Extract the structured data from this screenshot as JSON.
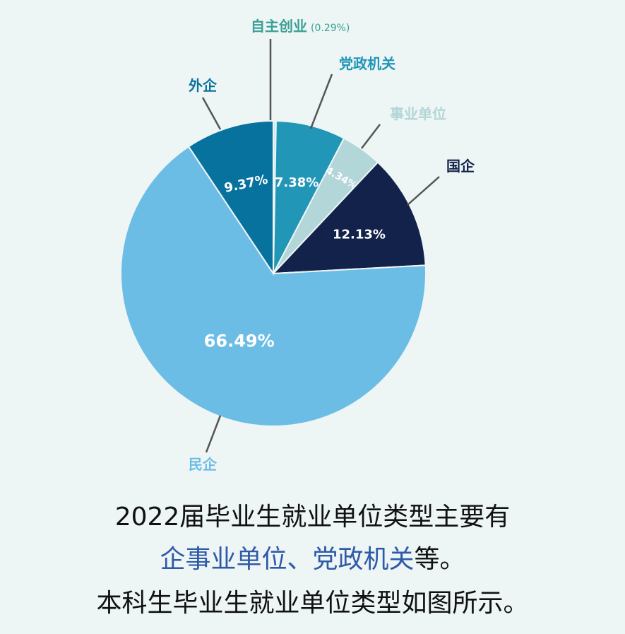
{
  "chart_data": {
    "type": "pie",
    "start": "top, clockwise",
    "slices": [
      {
        "label": "自主创业",
        "value": 0.29,
        "value_label": "(0.29%)",
        "color": "#cfe7f2",
        "label_color": "#3a9f95"
      },
      {
        "label": "党政机关",
        "value": 7.38,
        "value_label": "7.38%",
        "color": "#2196b6",
        "label_color": "#2196b6"
      },
      {
        "label": "事业单位",
        "value": 4.34,
        "value_label": "4.34%",
        "color": "#b3d6d8",
        "label_color": "#b3d6d8"
      },
      {
        "label": "国企",
        "value": 12.13,
        "value_label": "12.13%",
        "color": "#13224a",
        "label_color": "#13224a"
      },
      {
        "label": "民企",
        "value": 66.49,
        "value_label": "66.49%",
        "color": "#6bbde6",
        "label_color": "#6bbde6"
      },
      {
        "label": "外企",
        "value": 9.37,
        "value_label": "9.37%",
        "color": "#07729e",
        "label_color": "#07729e"
      }
    ]
  },
  "caption": {
    "line1": "2022届毕业生就业单位类型主要有",
    "line2_highlight": "企事业单位、党政机关",
    "line2_rest": "等。",
    "line3": "本科生毕业生就业单位类型如图所示。",
    "highlight_color": "#2f5aa8"
  }
}
